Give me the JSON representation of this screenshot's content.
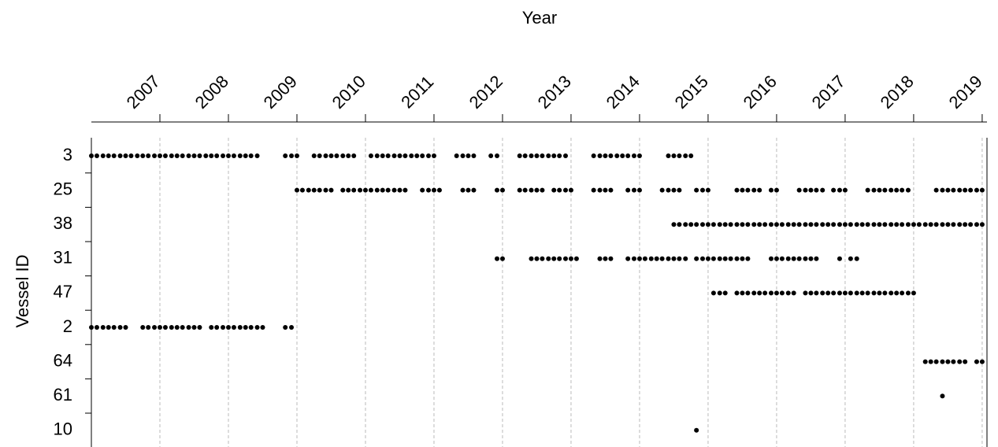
{
  "chart_data": {
    "type": "timeline",
    "title": "Year",
    "y_label": "Vessel ID",
    "xlim": [
      2006,
      2019.07
    ],
    "xticks": [
      2007,
      2008,
      2009,
      2010,
      2011,
      2012,
      2013,
      2014,
      2015,
      2016,
      2017,
      2018,
      2019
    ],
    "grid": true,
    "color": "#000000",
    "series": [
      {
        "name": "3",
        "x": [
          2006,
          2006.08,
          2006.17,
          2006.25,
          2006.33,
          2006.42,
          2006.5,
          2006.58,
          2006.67,
          2006.75,
          2006.83,
          2006.92,
          2007,
          2007.08,
          2007.17,
          2007.25,
          2007.33,
          2007.42,
          2007.5,
          2007.58,
          2007.67,
          2007.75,
          2007.83,
          2007.92,
          2008,
          2008.08,
          2008.17,
          2008.25,
          2008.33,
          2008.42,
          2008.83,
          2008.92,
          2009,
          2009.25,
          2009.33,
          2009.42,
          2009.5,
          2009.58,
          2009.67,
          2009.75,
          2009.83,
          2010.08,
          2010.17,
          2010.25,
          2010.33,
          2010.42,
          2010.5,
          2010.58,
          2010.67,
          2010.75,
          2010.83,
          2010.92,
          2011,
          2011.33,
          2011.42,
          2011.5,
          2011.58,
          2011.83,
          2011.92,
          2012.25,
          2012.33,
          2012.42,
          2012.5,
          2012.58,
          2012.67,
          2012.75,
          2012.83,
          2012.92,
          2013.33,
          2013.42,
          2013.5,
          2013.58,
          2013.67,
          2013.75,
          2013.83,
          2013.92,
          2014,
          2014.42,
          2014.5,
          2014.58,
          2014.67,
          2014.75
        ]
      },
      {
        "name": "25",
        "x": [
          2009,
          2009.08,
          2009.17,
          2009.25,
          2009.33,
          2009.42,
          2009.5,
          2009.67,
          2009.75,
          2009.83,
          2009.92,
          2010,
          2010.08,
          2010.17,
          2010.25,
          2010.33,
          2010.42,
          2010.5,
          2010.58,
          2010.83,
          2010.92,
          2011,
          2011.08,
          2011.42,
          2011.5,
          2011.58,
          2011.92,
          2012,
          2012.25,
          2012.33,
          2012.42,
          2012.5,
          2012.58,
          2012.75,
          2012.83,
          2012.92,
          2013,
          2013.33,
          2013.42,
          2013.5,
          2013.58,
          2013.83,
          2013.92,
          2014,
          2014.33,
          2014.42,
          2014.5,
          2014.58,
          2014.83,
          2014.92,
          2015,
          2015.42,
          2015.5,
          2015.58,
          2015.67,
          2015.75,
          2015.92,
          2016,
          2016.33,
          2016.42,
          2016.5,
          2016.58,
          2016.67,
          2016.83,
          2016.92,
          2017,
          2017.33,
          2017.42,
          2017.5,
          2017.58,
          2017.67,
          2017.75,
          2017.83,
          2017.92,
          2018.33,
          2018.42,
          2018.5,
          2018.58,
          2018.67,
          2018.75,
          2018.83,
          2018.92,
          2019
        ]
      },
      {
        "name": "38",
        "x": [
          2014.5,
          2014.58,
          2014.67,
          2014.75,
          2014.83,
          2014.92,
          2015,
          2015.08,
          2015.17,
          2015.25,
          2015.33,
          2015.42,
          2015.5,
          2015.58,
          2015.67,
          2015.75,
          2015.83,
          2015.92,
          2016,
          2016.08,
          2016.17,
          2016.25,
          2016.33,
          2016.42,
          2016.5,
          2016.58,
          2016.67,
          2016.75,
          2016.83,
          2016.92,
          2017,
          2017.08,
          2017.17,
          2017.25,
          2017.33,
          2017.42,
          2017.5,
          2017.58,
          2017.67,
          2017.75,
          2017.83,
          2017.92,
          2018,
          2018.08,
          2018.17,
          2018.25,
          2018.33,
          2018.42,
          2018.5,
          2018.58,
          2018.67,
          2018.75,
          2018.83,
          2018.92,
          2019
        ]
      },
      {
        "name": "31",
        "x": [
          2011.92,
          2012,
          2012.42,
          2012.5,
          2012.58,
          2012.67,
          2012.75,
          2012.83,
          2012.92,
          2013,
          2013.08,
          2013.42,
          2013.5,
          2013.58,
          2013.83,
          2013.92,
          2014,
          2014.08,
          2014.17,
          2014.25,
          2014.33,
          2014.42,
          2014.5,
          2014.58,
          2014.67,
          2014.83,
          2014.92,
          2015,
          2015.08,
          2015.17,
          2015.25,
          2015.33,
          2015.42,
          2015.5,
          2015.58,
          2015.92,
          2016,
          2016.08,
          2016.17,
          2016.25,
          2016.33,
          2016.42,
          2016.5,
          2016.58,
          2016.92,
          2017.08,
          2017.17
        ]
      },
      {
        "name": "47",
        "x": [
          2015.08,
          2015.17,
          2015.25,
          2015.42,
          2015.5,
          2015.58,
          2015.67,
          2015.75,
          2015.83,
          2015.92,
          2016,
          2016.08,
          2016.17,
          2016.25,
          2016.42,
          2016.5,
          2016.58,
          2016.67,
          2016.75,
          2016.83,
          2016.92,
          2017,
          2017.08,
          2017.17,
          2017.25,
          2017.33,
          2017.42,
          2017.5,
          2017.58,
          2017.67,
          2017.75,
          2017.83,
          2017.92,
          2018
        ]
      },
      {
        "name": "2",
        "x": [
          2006,
          2006.08,
          2006.17,
          2006.25,
          2006.33,
          2006.42,
          2006.5,
          2006.75,
          2006.83,
          2006.92,
          2007,
          2007.08,
          2007.17,
          2007.25,
          2007.33,
          2007.42,
          2007.5,
          2007.58,
          2007.75,
          2007.83,
          2007.92,
          2008,
          2008.08,
          2008.17,
          2008.25,
          2008.33,
          2008.42,
          2008.5,
          2008.83,
          2008.92
        ]
      },
      {
        "name": "64",
        "x": [
          2018.17,
          2018.25,
          2018.33,
          2018.42,
          2018.5,
          2018.58,
          2018.67,
          2018.75,
          2018.92,
          2019
        ]
      },
      {
        "name": "61",
        "x": [
          2018.42
        ]
      },
      {
        "name": "10",
        "x": [
          2014.83
        ]
      }
    ]
  }
}
